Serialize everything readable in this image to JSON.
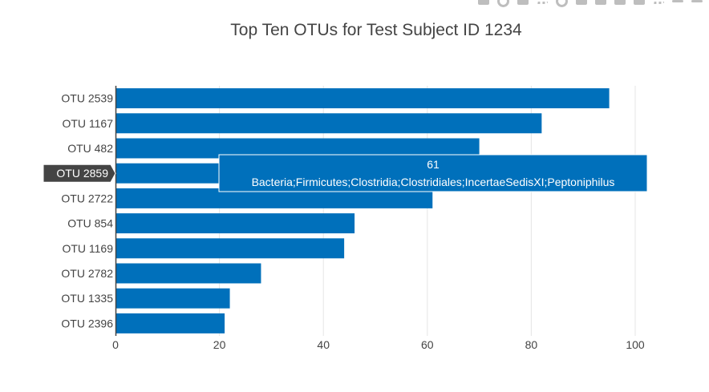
{
  "modebar": {
    "icons": [
      "camera-icon",
      "zoom-icon",
      "pan-icon",
      "box-select-icon",
      "lasso-icon",
      "zoom-in-icon",
      "zoom-out-icon",
      "autoscale-icon",
      "reset-axes-icon",
      "spike-lines-icon",
      "hover-closest-icon",
      "hover-compare-icon"
    ]
  },
  "chart_data": {
    "type": "bar",
    "orientation": "horizontal",
    "title": "Top Ten OTUs for Test Subject ID 1234",
    "categories": [
      "OTU 2539",
      "OTU 1167",
      "OTU 482",
      "OTU 2859",
      "OTU 2722",
      "OTU 854",
      "OTU 1169",
      "OTU 2782",
      "OTU 1335",
      "OTU 2396"
    ],
    "values": [
      95,
      82,
      70,
      61,
      61,
      46,
      44,
      28,
      22,
      21
    ],
    "xlim": [
      0,
      100
    ],
    "xticks": [
      0,
      20,
      40,
      60,
      80,
      100
    ],
    "grid": "vertical",
    "colors": {
      "bar": "#0070bb",
      "grid": "#e5e5e5",
      "axis": "#444444",
      "hover_label_bg": "#444444"
    },
    "hover": {
      "category": "OTU 2859",
      "value_label": "61",
      "text": "Bacteria;Firmicutes;Clostridia;Clostridiales;IncertaeSedisXI;Peptoniphilus"
    }
  }
}
